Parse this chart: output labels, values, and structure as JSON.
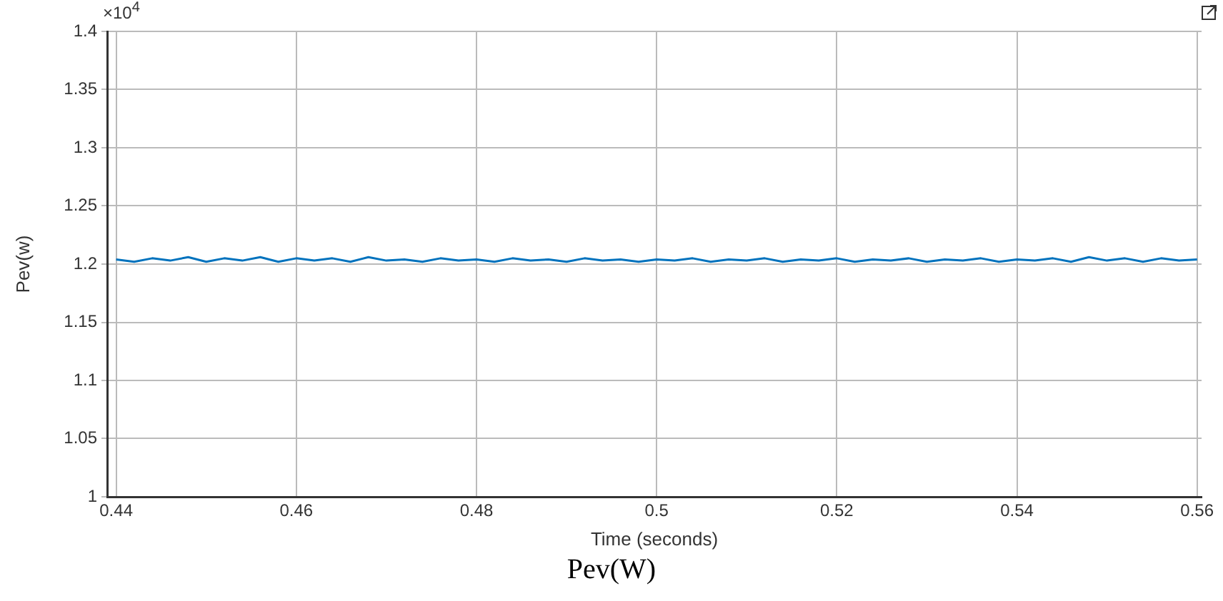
{
  "chart_data": {
    "type": "line",
    "xlabel": "Time (seconds)",
    "ylabel": "Pev(w)",
    "annotations": [
      "×10$^{4}$",
      "Pev(W)"
    ],
    "x": [
      0.44,
      0.442,
      0.444,
      0.446,
      0.448,
      0.45,
      0.452,
      0.454,
      0.456,
      0.458,
      0.46,
      0.462,
      0.464,
      0.466,
      0.468,
      0.47,
      0.472,
      0.474,
      0.476,
      0.478,
      0.48,
      0.482,
      0.484,
      0.486,
      0.488,
      0.49,
      0.492,
      0.494,
      0.496,
      0.498,
      0.5,
      0.502,
      0.504,
      0.506,
      0.508,
      0.51,
      0.512,
      0.514,
      0.516,
      0.518,
      0.52,
      0.522,
      0.524,
      0.526,
      0.528,
      0.53,
      0.532,
      0.534,
      0.536,
      0.538,
      0.54,
      0.542,
      0.544,
      0.546,
      0.548,
      0.55,
      0.552,
      0.554,
      0.556,
      0.558,
      0.56
    ],
    "series": [
      {
        "color": "#0072bd",
        "values": [
          1.204,
          1.202,
          1.205,
          1.203,
          1.206,
          1.202,
          1.205,
          1.203,
          1.206,
          1.202,
          1.205,
          1.203,
          1.205,
          1.202,
          1.206,
          1.203,
          1.204,
          1.202,
          1.205,
          1.203,
          1.204,
          1.202,
          1.205,
          1.203,
          1.204,
          1.202,
          1.205,
          1.203,
          1.204,
          1.202,
          1.204,
          1.203,
          1.205,
          1.202,
          1.204,
          1.203,
          1.205,
          1.202,
          1.204,
          1.203,
          1.205,
          1.202,
          1.204,
          1.203,
          1.205,
          1.202,
          1.204,
          1.203,
          1.205,
          1.202,
          1.204,
          1.203,
          1.205,
          1.202,
          1.206,
          1.203,
          1.205,
          1.202,
          1.205,
          1.203,
          1.204
        ]
      }
    ],
    "xlim": [
      0.439,
      0.5605
    ],
    "xticks": [
      0.44,
      0.46,
      0.48,
      0.5,
      0.52,
      0.54,
      0.56
    ],
    "ylim": [
      1,
      1.4
    ],
    "yticks": [
      1,
      1.05,
      1.1,
      1.15,
      1.2,
      1.25,
      1.3,
      1.35,
      1.4
    ],
    "grid": true,
    "legend": false,
    "marker": "none",
    "line_style": "solid"
  }
}
